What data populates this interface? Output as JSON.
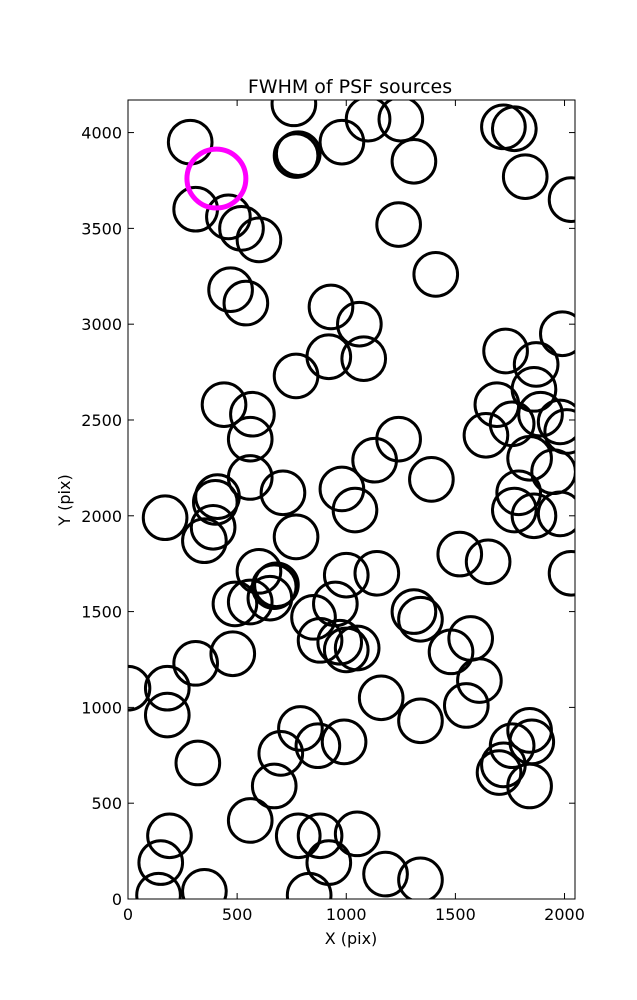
{
  "chart_data": {
    "type": "scatter",
    "title": "FWHM of PSF sources",
    "xlabel": "X (pix)",
    "ylabel": "Y (pix)",
    "xlim": [
      0,
      2048
    ],
    "ylim": [
      0,
      4170
    ],
    "xticks": [
      0,
      500,
      1000,
      1500,
      2000
    ],
    "yticks": [
      0,
      500,
      1000,
      1500,
      2000,
      2500,
      3000,
      3500,
      4000
    ],
    "grid": false,
    "marker": "open-circle",
    "marker_color": "#000000",
    "marker_radius_data_x": 100,
    "highlight_color": "#ff00ff",
    "series": [
      {
        "name": "",
        "points": [
          [
            285,
            3950
          ],
          [
            760,
            4150
          ],
          [
            980,
            3950
          ],
          [
            1100,
            4070
          ],
          [
            1250,
            4070
          ],
          [
            1310,
            3850
          ],
          [
            1720,
            4030
          ],
          [
            1770,
            4020
          ],
          [
            1820,
            3770
          ],
          [
            2030,
            3650
          ],
          [
            780,
            3890
          ],
          [
            770,
            3880
          ],
          [
            310,
            3600
          ],
          [
            460,
            3560
          ],
          [
            520,
            3500
          ],
          [
            600,
            3440
          ],
          [
            1240,
            3520
          ],
          [
            1410,
            3260
          ],
          [
            470,
            3180
          ],
          [
            540,
            3110
          ],
          [
            930,
            3090
          ],
          [
            1060,
            3000
          ],
          [
            1080,
            2820
          ],
          [
            920,
            2830
          ],
          [
            770,
            2730
          ],
          [
            1730,
            2860
          ],
          [
            1870,
            2790
          ],
          [
            1990,
            2950
          ],
          [
            440,
            2580
          ],
          [
            570,
            2530
          ],
          [
            560,
            2400
          ],
          [
            1690,
            2580
          ],
          [
            1760,
            2480
          ],
          [
            1860,
            2660
          ],
          [
            1890,
            2530
          ],
          [
            1980,
            2490
          ],
          [
            2010,
            2440
          ],
          [
            1640,
            2420
          ],
          [
            1240,
            2400
          ],
          [
            1130,
            2290
          ],
          [
            1840,
            2300
          ],
          [
            1950,
            2230
          ],
          [
            560,
            2200
          ],
          [
            710,
            2120
          ],
          [
            980,
            2140
          ],
          [
            1040,
            2030
          ],
          [
            1390,
            2190
          ],
          [
            410,
            2100
          ],
          [
            400,
            2070
          ],
          [
            170,
            1990
          ],
          [
            390,
            1940
          ],
          [
            350,
            1870
          ],
          [
            770,
            1890
          ],
          [
            1520,
            1800
          ],
          [
            1650,
            1760
          ],
          [
            1790,
            2120
          ],
          [
            1770,
            2030
          ],
          [
            1860,
            2000
          ],
          [
            1980,
            2010
          ],
          [
            2030,
            1700
          ],
          [
            600,
            1710
          ],
          [
            670,
            1630
          ],
          [
            650,
            1570
          ],
          [
            560,
            1550
          ],
          [
            490,
            1540
          ],
          [
            850,
            1470
          ],
          [
            1000,
            1690
          ],
          [
            1140,
            1700
          ],
          [
            950,
            1540
          ],
          [
            880,
            1350
          ],
          [
            970,
            1340
          ],
          [
            1000,
            1300
          ],
          [
            1050,
            1310
          ],
          [
            1310,
            1500
          ],
          [
            1340,
            1460
          ],
          [
            1480,
            1290
          ],
          [
            1570,
            1360
          ],
          [
            1610,
            1140
          ],
          [
            1550,
            1010
          ],
          [
            1160,
            1050
          ],
          [
            1340,
            930
          ],
          [
            680,
            1640
          ],
          [
            310,
            1230
          ],
          [
            480,
            1280
          ],
          [
            0,
            1100
          ],
          [
            180,
            1100
          ],
          [
            180,
            960
          ],
          [
            320,
            710
          ],
          [
            700,
            760
          ],
          [
            790,
            890
          ],
          [
            870,
            800
          ],
          [
            990,
            820
          ],
          [
            670,
            590
          ],
          [
            560,
            410
          ],
          [
            780,
            330
          ],
          [
            880,
            330
          ],
          [
            1050,
            340
          ],
          [
            920,
            190
          ],
          [
            830,
            20
          ],
          [
            1180,
            130
          ],
          [
            1340,
            100
          ],
          [
            350,
            40
          ],
          [
            140,
            20
          ],
          [
            150,
            190
          ],
          [
            190,
            330
          ],
          [
            1700,
            660
          ],
          [
            1720,
            700
          ],
          [
            1760,
            800
          ],
          [
            1840,
            880
          ],
          [
            1850,
            820
          ],
          [
            1840,
            590
          ]
        ]
      }
    ],
    "highlight": {
      "x": 405,
      "y": 3760
    }
  }
}
